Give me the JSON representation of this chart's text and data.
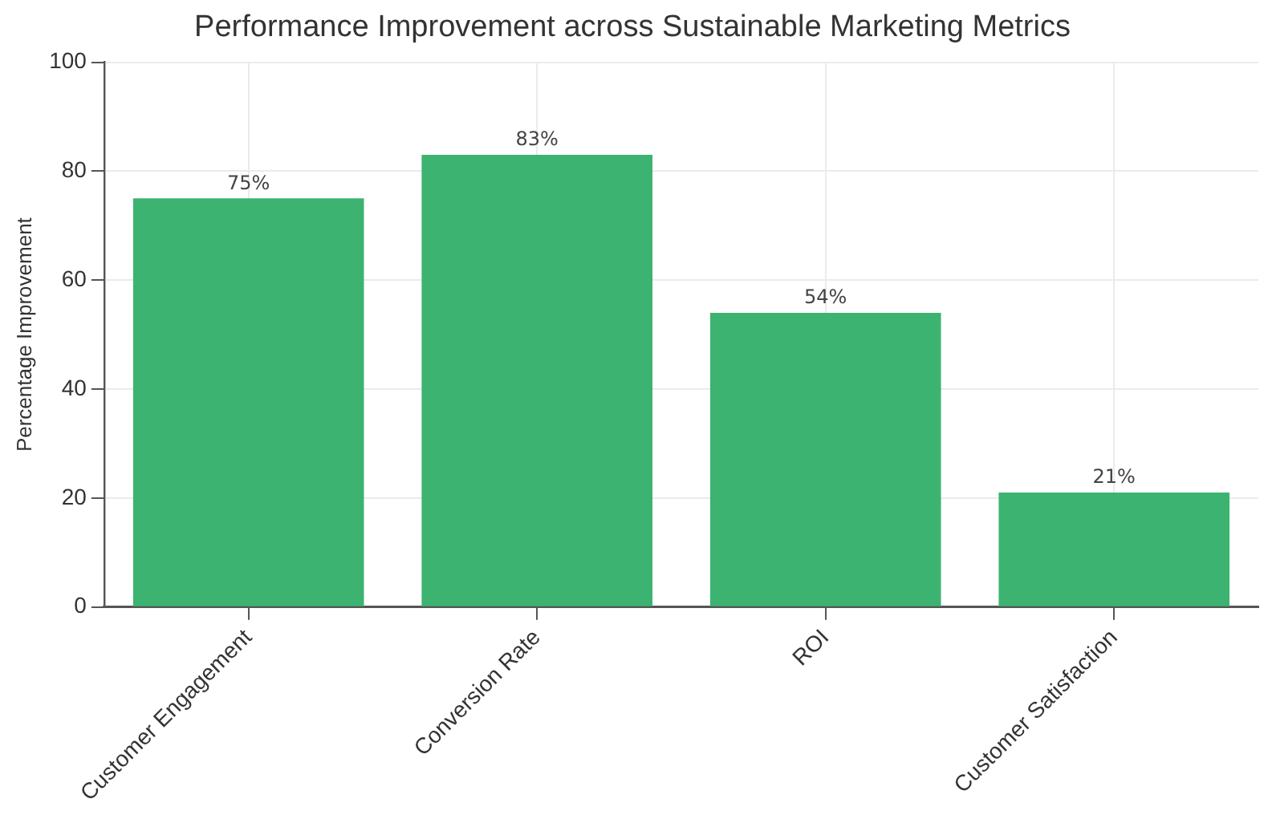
{
  "chart_data": {
    "type": "bar",
    "title": "Performance Improvement across Sustainable Marketing Metrics",
    "ylabel": "Percentage Improvement",
    "categories": [
      "Customer Engagement",
      "Conversion Rate",
      "ROI",
      "Customer Satisfaction"
    ],
    "values": [
      75,
      83,
      54,
      21
    ],
    "color": "#3cb371",
    "value_labels": [
      "75%",
      "83%",
      "54%",
      "21%"
    ],
    "ylim": [
      0,
      100
    ],
    "yticks": [
      0,
      20,
      40,
      60,
      80,
      100
    ],
    "grid": true,
    "legend": false
  }
}
